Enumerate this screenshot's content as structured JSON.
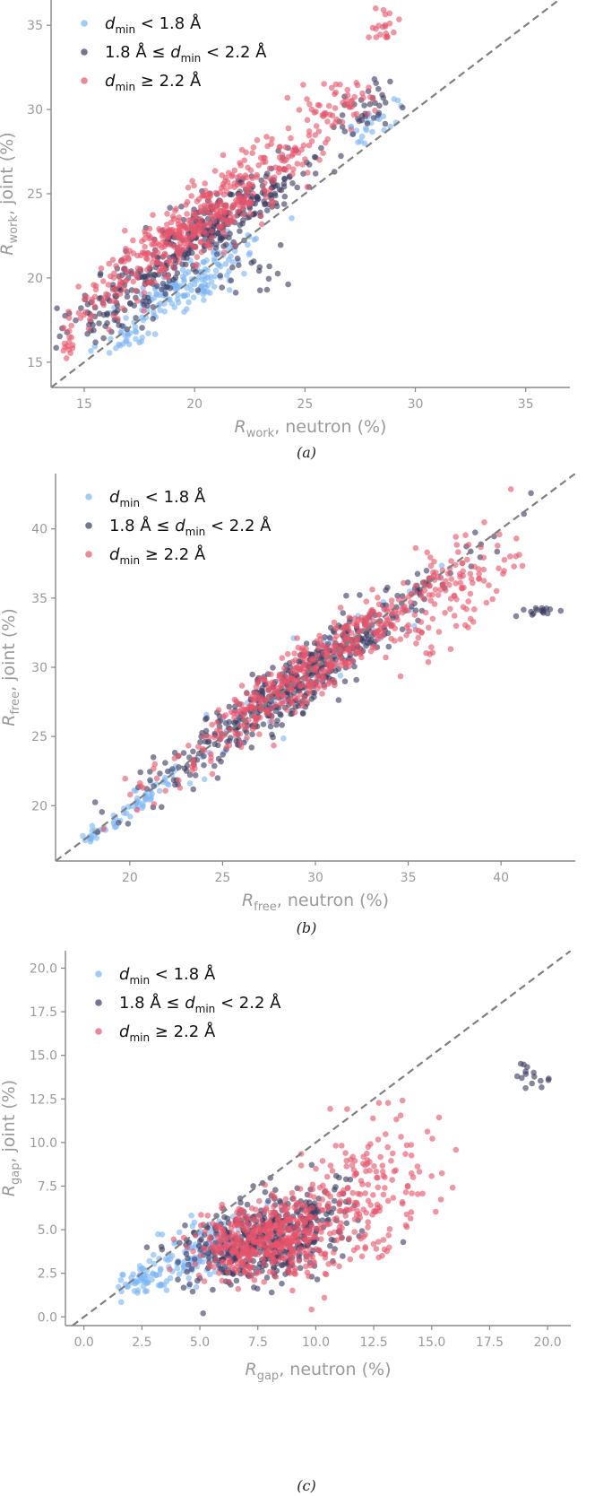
{
  "figure": {
    "panel_captions": [
      "(a)",
      "(b)",
      "(c)"
    ]
  },
  "colors": {
    "low": "#7ab6f5",
    "mid": "#3b3c63",
    "high": "#e9546b",
    "diagonal": "#7f7f7f",
    "axis_label": "#9a9a9a",
    "axis": "#888888"
  },
  "legend_entries": [
    {
      "pre": "",
      "italic": "d",
      "sub": "min",
      "post": " < 1.8 Å",
      "color": "#7ab6f5"
    },
    {
      "pre": "1.8 Å ≤ ",
      "italic": "d",
      "sub": "min",
      "post": " < 2.2 Å",
      "color": "#3b3c63"
    },
    {
      "pre": "",
      "italic": "d",
      "sub": "min",
      "post": " ≥ 2.2 Å",
      "color": "#e9546b"
    }
  ],
  "chart_data": [
    {
      "type": "scatter",
      "panel": "(a)",
      "xlabel": {
        "italic": "R",
        "sub": "work",
        "rest": ", neutron (%)"
      },
      "ylabel": {
        "italic": "R",
        "sub": "work",
        "rest": ", joint (%)"
      },
      "xlim": [
        13.5,
        37
      ],
      "ylim": [
        13.5,
        36.5
      ],
      "xticks": [
        "15",
        "20",
        "25",
        "30",
        "35"
      ],
      "yticks": [
        "15",
        "20",
        "25",
        "30",
        "35"
      ],
      "diagonal": "y = x",
      "grid": false,
      "legend": "top-left",
      "series": [
        {
          "name_ref": 0,
          "clusters": [
            {
              "x": 19.2,
              "y": 19.3,
              "sx": 1.3,
              "sy": 1.0,
              "corr": 0.7,
              "n": 110
            },
            {
              "x": 17.0,
              "y": 16.6,
              "sx": 0.7,
              "sy": 0.6,
              "corr": 0.6,
              "n": 30
            },
            {
              "x": 21.5,
              "y": 21.3,
              "sx": 0.9,
              "sy": 0.8,
              "corr": 0.7,
              "n": 35
            },
            {
              "x": 28.0,
              "y": 29.2,
              "sx": 0.8,
              "sy": 0.8,
              "corr": 0.5,
              "n": 24
            }
          ]
        },
        {
          "name_ref": 1,
          "clusters": [
            {
              "x": 20.7,
              "y": 22.9,
              "sx": 2.7,
              "sy": 2.6,
              "corr": 0.93,
              "n": 380
            },
            {
              "x": 16.2,
              "y": 18.1,
              "sx": 0.9,
              "sy": 0.9,
              "corr": 0.4,
              "n": 45
            },
            {
              "x": 22.5,
              "y": 20.3,
              "sx": 1.0,
              "sy": 0.6,
              "corr": 0.2,
              "n": 18
            },
            {
              "x": 27.8,
              "y": 30.0,
              "sx": 0.7,
              "sy": 0.9,
              "corr": 0.5,
              "n": 30
            }
          ]
        },
        {
          "name_ref": 2,
          "clusters": [
            {
              "x": 20.3,
              "y": 23.4,
              "sx": 2.7,
              "sy": 2.7,
              "corr": 0.92,
              "n": 460
            },
            {
              "x": 26.2,
              "y": 30.3,
              "sx": 0.9,
              "sy": 1.1,
              "corr": 0.5,
              "n": 50
            },
            {
              "x": 14.3,
              "y": 16.2,
              "sx": 0.12,
              "sy": 0.4,
              "corr": 0.0,
              "n": 12
            },
            {
              "x": 28.6,
              "y": 35.0,
              "sx": 0.35,
              "sy": 0.45,
              "corr": 0.0,
              "n": 20
            }
          ]
        }
      ]
    },
    {
      "type": "scatter",
      "panel": "(b)",
      "xlabel": {
        "italic": "R",
        "sub": "free",
        "rest": ", neutron (%)"
      },
      "ylabel": {
        "italic": "R",
        "sub": "free",
        "rest": ", joint (%)"
      },
      "xlim": [
        16,
        44
      ],
      "ylim": [
        16,
        44
      ],
      "xticks": [
        "20",
        "25",
        "30",
        "35",
        "40"
      ],
      "yticks": [
        "20",
        "25",
        "30",
        "35",
        "40"
      ],
      "diagonal": "y = x",
      "grid": false,
      "legend": "top-left",
      "series": [
        {
          "name_ref": 0,
          "clusters": [
            {
              "x": 20.5,
              "y": 20.3,
              "sx": 1.3,
              "sy": 1.3,
              "corr": 0.95,
              "n": 55
            },
            {
              "x": 17.9,
              "y": 17.6,
              "sx": 0.3,
              "sy": 0.3,
              "corr": 0.5,
              "n": 10
            },
            {
              "x": 30.0,
              "y": 29.8,
              "sx": 3.5,
              "sy": 3.5,
              "corr": 0.95,
              "n": 60
            }
          ]
        },
        {
          "name_ref": 1,
          "clusters": [
            {
              "x": 29.0,
              "y": 28.9,
              "sx": 4.0,
              "sy": 4.0,
              "corr": 0.96,
              "n": 480
            },
            {
              "x": 42.0,
              "y": 34.1,
              "sx": 0.6,
              "sy": 0.25,
              "corr": 0.0,
              "n": 16
            }
          ]
        },
        {
          "name_ref": 2,
          "clusters": [
            {
              "x": 29.5,
              "y": 29.5,
              "sx": 3.6,
              "sy": 3.5,
              "corr": 0.95,
              "n": 430
            },
            {
              "x": 37.5,
              "y": 35.5,
              "sx": 1.6,
              "sy": 2.2,
              "corr": 0.55,
              "n": 120
            }
          ]
        }
      ]
    },
    {
      "type": "scatter",
      "panel": "(c)",
      "xlabel": {
        "italic": "R",
        "sub": "gap",
        "rest": ", neutron (%)"
      },
      "ylabel": {
        "italic": "R",
        "sub": "gap",
        "rest": ", joint (%)"
      },
      "xlim": [
        -0.8,
        21
      ],
      "ylim": [
        -0.5,
        21
      ],
      "xticks": [
        "0.0",
        "2.5",
        "5.0",
        "7.5",
        "10.0",
        "12.5",
        "15.0",
        "17.5",
        "20.0"
      ],
      "yticks": [
        "0.0",
        "2.5",
        "5.0",
        "7.5",
        "10.0",
        "12.5",
        "15.0",
        "17.5",
        "20.0"
      ],
      "diagonal": "y = x",
      "grid": false,
      "legend": "top-left",
      "series": [
        {
          "name_ref": 0,
          "clusters": [
            {
              "x": 2.4,
              "y": 2.1,
              "sx": 0.6,
              "sy": 0.45,
              "corr": 0.5,
              "n": 55
            },
            {
              "x": 5.3,
              "y": 4.0,
              "sx": 1.1,
              "sy": 1.0,
              "corr": 0.5,
              "n": 120
            }
          ]
        },
        {
          "name_ref": 1,
          "clusters": [
            {
              "x": 7.8,
              "y": 4.5,
              "sx": 1.6,
              "sy": 1.3,
              "corr": 0.3,
              "n": 500
            },
            {
              "x": 19.2,
              "y": 13.7,
              "sx": 0.55,
              "sy": 0.5,
              "corr": 0.0,
              "n": 15
            }
          ]
        },
        {
          "name_ref": 2,
          "clusters": [
            {
              "x": 7.8,
              "y": 4.5,
              "sx": 1.4,
              "sy": 1.0,
              "corr": 0.3,
              "n": 420
            },
            {
              "x": 11.8,
              "y": 7.0,
              "sx": 1.6,
              "sy": 2.2,
              "corr": 0.4,
              "n": 220
            }
          ]
        }
      ]
    }
  ]
}
